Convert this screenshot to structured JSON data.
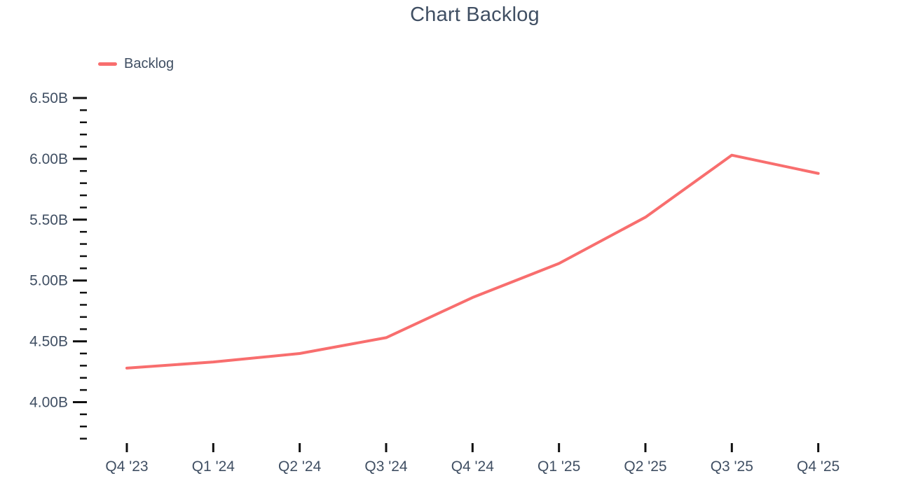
{
  "chart_data": {
    "type": "line",
    "title": "Chart Backlog",
    "categories": [
      "Q4 '23",
      "Q1 '24",
      "Q2 '24",
      "Q3 '24",
      "Q4 '24",
      "Q1 '25",
      "Q2 '25",
      "Q3 '25",
      "Q4 '25"
    ],
    "series": [
      {
        "name": "Backlog",
        "color": "#f86e6e",
        "values": [
          4.28,
          4.33,
          4.4,
          4.53,
          4.86,
          5.14,
          5.52,
          6.03,
          5.88
        ]
      }
    ],
    "unit": "B",
    "y_axis": {
      "major_ticks": [
        6.5,
        6.0,
        5.5,
        5.0,
        4.5,
        4.0
      ],
      "tick_labels": [
        "6.50B",
        "6.00B",
        "5.50B",
        "5.00B",
        "4.50B",
        "4.00B"
      ],
      "minor_tick_step": 0.1,
      "range_top": 6.5,
      "range_bottom": 3.7
    },
    "legend": {
      "position": "top-left",
      "entries": [
        "Backlog"
      ]
    },
    "grid": false,
    "xlabel": "",
    "ylabel": ""
  },
  "colors": {
    "text": "#404f63",
    "tick": "#111111",
    "series_line": "#f86e6e",
    "background": "#ffffff"
  }
}
